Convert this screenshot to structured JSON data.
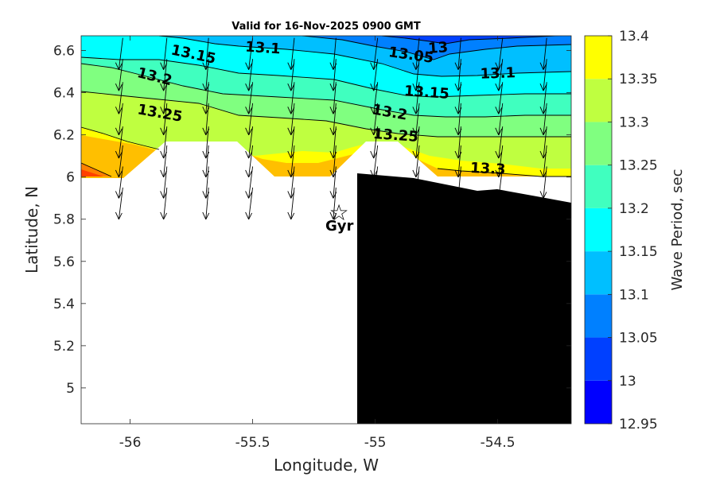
{
  "chart_data": {
    "type": "contour",
    "title": "Valid for 16-Nov-2025 0900 GMT",
    "xlabel": "Longitude, W",
    "ylabel": "Latitude, N",
    "xlim": [
      -56.2,
      -54.2
    ],
    "ylim": [
      4.83,
      6.67
    ],
    "xticks": [
      "-56",
      "-55.5",
      "-55",
      "-54.5"
    ],
    "xtick_values": [
      -56,
      -55.5,
      -55,
      -54.5
    ],
    "yticks": [
      "5",
      "5.2",
      "5.4",
      "5.6",
      "5.8",
      "6",
      "6.2",
      "6.4",
      "6.6"
    ],
    "ytick_values": [
      5.0,
      5.2,
      5.4,
      5.6,
      5.8,
      6.0,
      6.2,
      6.4,
      6.6
    ],
    "colorbar": {
      "label": "Wave Period, sec",
      "tick_labels": [
        "12.95",
        "13",
        "13.05",
        "13.1",
        "13.15",
        "13.2",
        "13.25",
        "13.3",
        "13.35",
        "13.4"
      ],
      "levels": [
        12.95,
        13.0,
        13.05,
        13.1,
        13.15,
        13.2,
        13.25,
        13.3,
        13.35,
        13.4
      ],
      "colors": [
        "#0000ff",
        "#0040ff",
        "#0080ff",
        "#00bfff",
        "#00ffff",
        "#40ffbf",
        "#80ff80",
        "#bfff40",
        "#ffff00",
        "#ffbf00",
        "#ff8000",
        "#ff4000"
      ]
    },
    "band_colors": {
      "b_1295": "#0000ff",
      "b_1300": "#0040ff",
      "b_1305": "#0080ff",
      "b_1310": "#00bfff",
      "b_1315": "#00ffff",
      "b_1320": "#40ffbf",
      "b_1325": "#80ff80",
      "b_1330": "#bfff40",
      "b_1335": "#ffff00",
      "b_1340": "#ffbf00",
      "b_1345": "#ff8000",
      "b_1350": "#ff4000"
    },
    "contour_labels": [
      "13.15",
      "13.1",
      "13",
      "13.05",
      "13.1",
      "13.2",
      "13.15",
      "13.25",
      "13.2",
      "13.25",
      "13.3"
    ],
    "marker": {
      "symbol": "☆",
      "name": "Gyr"
    },
    "land_color": "#000000"
  }
}
